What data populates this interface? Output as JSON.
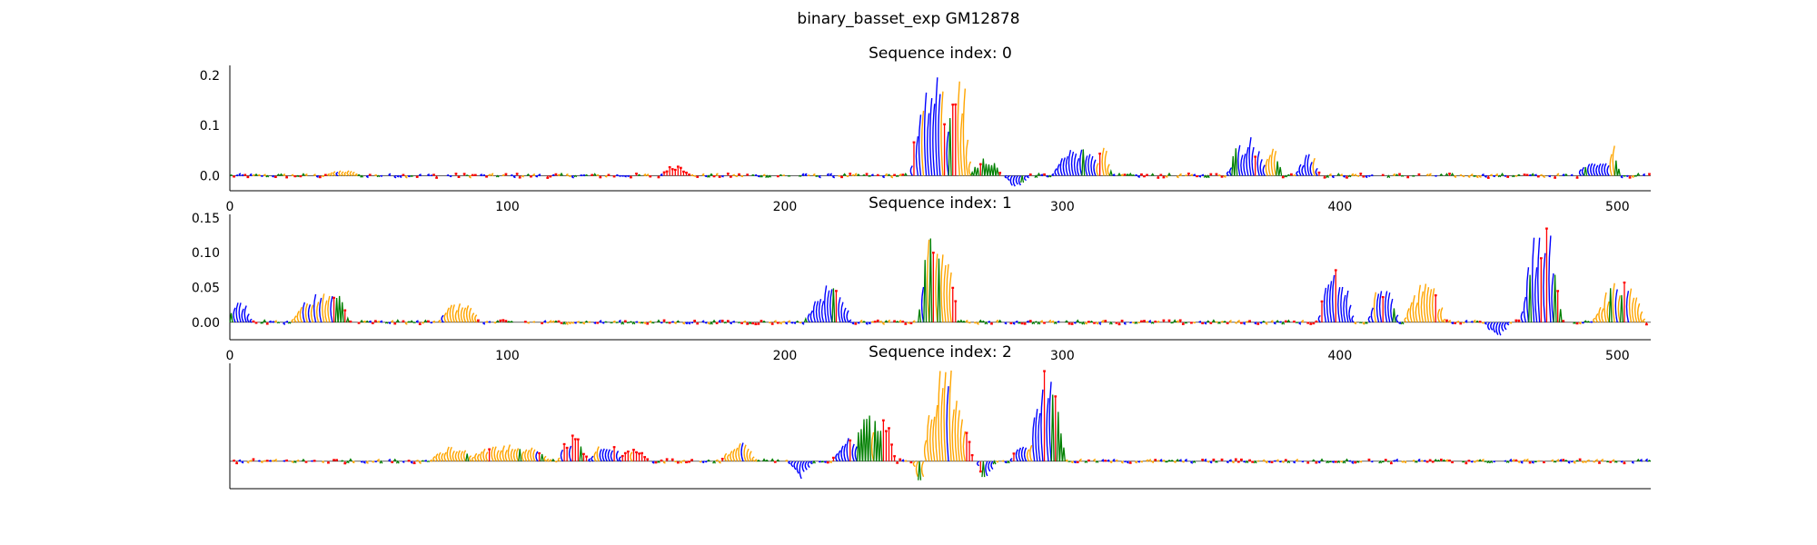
{
  "figure": {
    "suptitle": "binary_basset_exp GM12878"
  },
  "colors": {
    "A": "#008000",
    "C": "#0000ff",
    "G": "#ffa500",
    "T": "#ff0000",
    "axis": "#000000"
  },
  "chart_data": [
    {
      "type": "sequence-logo",
      "title": "Sequence index: 0",
      "sequence_length": 512,
      "xlim": [
        0,
        512
      ],
      "ylim": [
        -0.03,
        0.22
      ],
      "x_ticks": [
        "0",
        "100",
        "200",
        "300",
        "400",
        "500"
      ],
      "y_ticks": [
        "0.0",
        "0.1",
        "0.2"
      ],
      "y_tick_values": [
        0.0,
        0.1,
        0.2
      ],
      "peaks": [
        {
          "pos": 40,
          "width": 12,
          "height": 0.012,
          "base": "G"
        },
        {
          "pos": 160,
          "width": 10,
          "height": 0.02,
          "base": "T"
        },
        {
          "pos": 253,
          "width": 16,
          "height": 0.21,
          "base": "C"
        },
        {
          "pos": 257,
          "width": 4,
          "height": 0.14,
          "base": "T"
        },
        {
          "pos": 262,
          "width": 8,
          "height": 0.22,
          "base": "G"
        },
        {
          "pos": 272,
          "width": 10,
          "height": 0.04,
          "base": "A"
        },
        {
          "pos": 283,
          "width": 8,
          "height": -0.025,
          "base": "C"
        },
        {
          "pos": 305,
          "width": 18,
          "height": 0.06,
          "base": "C"
        },
        {
          "pos": 314,
          "width": 6,
          "height": 0.06,
          "base": "G"
        },
        {
          "pos": 366,
          "width": 14,
          "height": 0.08,
          "base": "C"
        },
        {
          "pos": 375,
          "width": 6,
          "height": 0.07,
          "base": "G"
        },
        {
          "pos": 388,
          "width": 8,
          "height": 0.045,
          "base": "C"
        },
        {
          "pos": 492,
          "width": 14,
          "height": 0.035,
          "base": "C"
        },
        {
          "pos": 498,
          "width": 4,
          "height": 0.06,
          "base": "G"
        }
      ]
    },
    {
      "type": "sequence-logo",
      "title": "Sequence index: 1",
      "sequence_length": 512,
      "xlim": [
        0,
        512
      ],
      "ylim": [
        -0.025,
        0.155
      ],
      "x_ticks": [
        "0",
        "100",
        "200",
        "300",
        "400",
        "500"
      ],
      "y_ticks": [
        "0.00",
        "0.05",
        "0.10",
        "0.15"
      ],
      "y_tick_values": [
        0.0,
        0.05,
        0.1,
        0.15
      ],
      "peaks": [
        {
          "pos": 3,
          "width": 8,
          "height": 0.03,
          "base": "C"
        },
        {
          "pos": 32,
          "width": 20,
          "height": 0.045,
          "base": "G"
        },
        {
          "pos": 38,
          "width": 8,
          "height": 0.04,
          "base": "A"
        },
        {
          "pos": 82,
          "width": 14,
          "height": 0.03,
          "base": "G"
        },
        {
          "pos": 215,
          "width": 16,
          "height": 0.055,
          "base": "C"
        },
        {
          "pos": 253,
          "width": 10,
          "height": 0.15,
          "base": "A"
        },
        {
          "pos": 256,
          "width": 8,
          "height": 0.13,
          "base": "G"
        },
        {
          "pos": 259,
          "width": 4,
          "height": 0.09,
          "base": "T"
        },
        {
          "pos": 398,
          "width": 12,
          "height": 0.085,
          "base": "C"
        },
        {
          "pos": 415,
          "width": 10,
          "height": 0.065,
          "base": "C"
        },
        {
          "pos": 430,
          "width": 14,
          "height": 0.06,
          "base": "G"
        },
        {
          "pos": 456,
          "width": 8,
          "height": -0.022,
          "base": "C"
        },
        {
          "pos": 472,
          "width": 14,
          "height": 0.15,
          "base": "C"
        },
        {
          "pos": 470,
          "width": 8,
          "height": 0.065,
          "base": "G"
        },
        {
          "pos": 500,
          "width": 18,
          "height": 0.06,
          "base": "G"
        },
        {
          "pos": 502,
          "width": 12,
          "height": 0.04,
          "base": "A"
        }
      ]
    },
    {
      "type": "sequence-logo",
      "title": "Sequence index: 2",
      "sequence_length": 512,
      "xlim": [
        0,
        512
      ],
      "ylim": [
        -0.07,
        0.25
      ],
      "x_ticks": [],
      "y_ticks": [],
      "y_tick_values": [],
      "peaks": [
        {
          "pos": 80,
          "width": 16,
          "height": 0.04,
          "base": "G"
        },
        {
          "pos": 100,
          "width": 30,
          "height": 0.05,
          "base": "G"
        },
        {
          "pos": 123,
          "width": 10,
          "height": 0.07,
          "base": "T"
        },
        {
          "pos": 135,
          "width": 12,
          "height": 0.05,
          "base": "C"
        },
        {
          "pos": 145,
          "width": 10,
          "height": 0.035,
          "base": "T"
        },
        {
          "pos": 183,
          "width": 12,
          "height": 0.05,
          "base": "G"
        },
        {
          "pos": 205,
          "width": 8,
          "height": -0.045,
          "base": "C"
        },
        {
          "pos": 222,
          "width": 10,
          "height": 0.06,
          "base": "C"
        },
        {
          "pos": 230,
          "width": 14,
          "height": 0.12,
          "base": "A"
        },
        {
          "pos": 235,
          "width": 8,
          "height": 0.11,
          "base": "T"
        },
        {
          "pos": 249,
          "width": 6,
          "height": -0.06,
          "base": "G"
        },
        {
          "pos": 257,
          "width": 16,
          "height": 0.25,
          "base": "G"
        },
        {
          "pos": 262,
          "width": 6,
          "height": 0.1,
          "base": "A"
        },
        {
          "pos": 264,
          "width": 6,
          "height": 0.09,
          "base": "T"
        },
        {
          "pos": 272,
          "width": 6,
          "height": -0.045,
          "base": "C"
        },
        {
          "pos": 285,
          "width": 8,
          "height": 0.04,
          "base": "C"
        },
        {
          "pos": 287,
          "width": 6,
          "height": -0.03,
          "base": "G"
        },
        {
          "pos": 290,
          "width": 10,
          "height": 0.05,
          "base": "G"
        },
        {
          "pos": 293,
          "width": 10,
          "height": 0.24,
          "base": "C"
        },
        {
          "pos": 296,
          "width": 8,
          "height": 0.2,
          "base": "A"
        }
      ]
    }
  ]
}
